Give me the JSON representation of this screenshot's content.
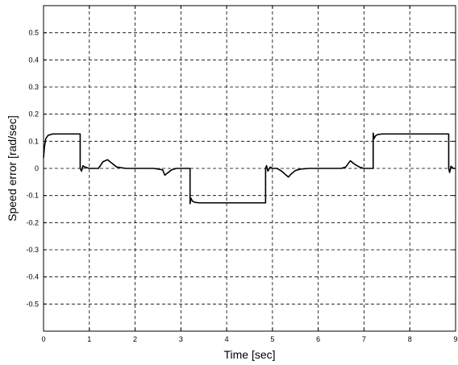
{
  "chart_data": {
    "type": "line",
    "title": "",
    "xlabel": "Time [sec]",
    "ylabel": "Speed error [rad/sec]",
    "xlim": [
      0,
      9
    ],
    "ylim": [
      -0.6,
      0.6
    ],
    "grid": true,
    "grid_style": "dashed",
    "x_ticks": [
      0,
      1,
      2,
      3,
      4,
      5,
      6,
      7,
      8,
      9
    ],
    "x_tick_labels": [
      "0",
      "1",
      "2",
      "3",
      "4",
      "5",
      "6",
      "7",
      "8",
      "9"
    ],
    "y_ticks": [
      0.5,
      0.4,
      0.3,
      0.2,
      0.1,
      0,
      -0.1,
      -0.2,
      -0.3,
      -0.4,
      -0.5
    ],
    "y_tick_labels": [
      "0.5",
      "0.4",
      "0.3",
      "0.2",
      "0.1",
      "0",
      "-0.1",
      "-0.2",
      "-0.3",
      "-0.4",
      "-0.5"
    ],
    "series": [
      {
        "color": "#000000",
        "x": [
          0,
          0.02,
          0.05,
          0.1,
          0.2,
          0.3,
          0.5,
          0.8,
          0.8,
          0.83,
          0.86,
          0.9,
          1.0,
          1.2,
          1.3,
          1.4,
          1.5,
          1.6,
          1.8,
          2.0,
          2.4,
          2.6,
          2.65,
          2.7,
          2.8,
          2.9,
          3.0,
          3.2,
          3.2,
          3.22,
          3.25,
          3.3,
          3.4,
          3.6,
          4.0,
          4.5,
          4.85,
          4.85,
          4.87,
          4.9,
          4.95,
          5.0,
          5.1,
          5.2,
          5.3,
          5.35,
          5.4,
          5.5,
          5.6,
          5.8,
          6.0,
          6.5,
          6.6,
          6.7,
          6.8,
          6.9,
          7.0,
          7.2,
          7.2,
          7.22,
          7.25,
          7.3,
          7.4,
          7.6,
          8.0,
          8.5,
          8.85,
          8.85,
          8.87,
          8.9,
          8.95,
          9.0
        ],
        "y": [
          0.04,
          0.08,
          0.11,
          0.122,
          0.127,
          0.127,
          0.127,
          0.127,
          0.0,
          -0.01,
          0.01,
          0.005,
          0.0,
          0.0,
          0.025,
          0.032,
          0.018,
          0.005,
          0.0,
          0.0,
          0.0,
          -0.005,
          -0.025,
          -0.018,
          -0.005,
          0.0,
          0.0,
          0.0,
          -0.13,
          -0.11,
          -0.12,
          -0.125,
          -0.127,
          -0.127,
          -0.127,
          -0.127,
          -0.127,
          0.0,
          0.01,
          -0.01,
          0.005,
          0.0,
          0.0,
          -0.01,
          -0.025,
          -0.032,
          -0.022,
          -0.008,
          -0.003,
          0.0,
          0.0,
          0.0,
          0.005,
          0.028,
          0.015,
          0.005,
          0.0,
          0.0,
          0.13,
          0.11,
          0.12,
          0.125,
          0.127,
          0.127,
          0.127,
          0.127,
          0.127,
          0.0,
          -0.015,
          0.008,
          0.0,
          0.0
        ]
      }
    ]
  }
}
